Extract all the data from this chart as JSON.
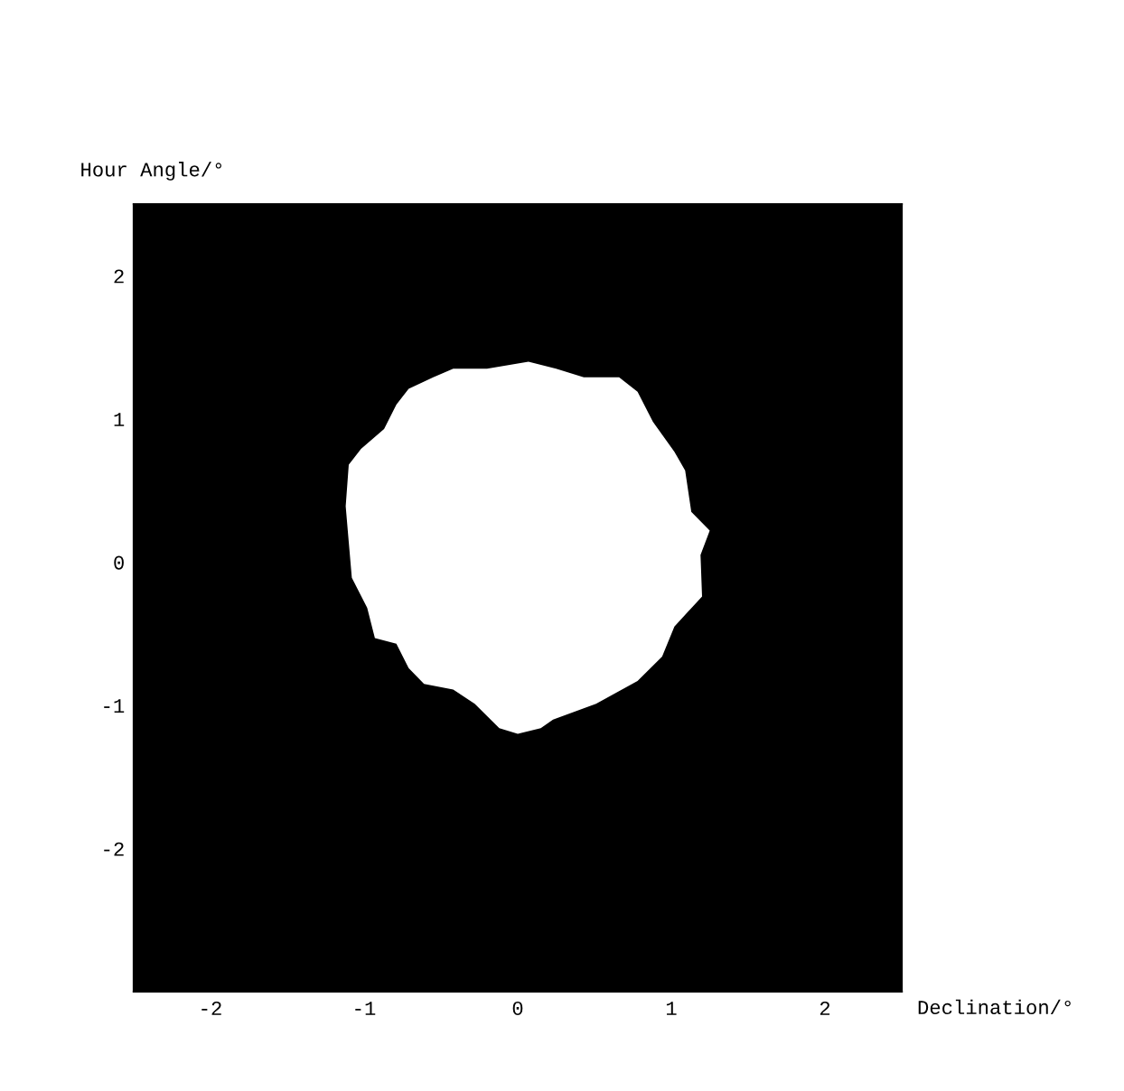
{
  "chart_data": {
    "type": "area",
    "xlabel": "Declination/°",
    "ylabel": "Hour Angle/°",
    "xlim": [
      -2.5,
      2.5
    ],
    "ylim": [
      -3.0,
      2.5
    ],
    "xticks": [
      -2,
      -1,
      0,
      1,
      2
    ],
    "yticks": [
      -2,
      -1,
      0,
      1,
      2
    ],
    "grid": false,
    "bands": [
      {
        "axis": "x",
        "from": -2.5,
        "to": 2.5,
        "color": "#000000"
      }
    ],
    "series": [
      {
        "color": "#ffffff",
        "x": [
          -0.42,
          -0.2,
          0.07,
          0.25,
          0.43,
          0.66,
          0.78,
          0.88,
          1.02,
          1.09,
          1.13,
          1.25,
          1.19,
          1.2,
          1.02,
          0.94,
          0.78,
          0.51,
          0.23,
          0.15,
          0.0,
          -0.12,
          -0.28,
          -0.42,
          -0.61,
          -0.71,
          -0.79,
          -0.93,
          -0.98,
          -1.08,
          -1.1,
          -1.12,
          -1.1,
          -1.02,
          -0.87,
          -0.79,
          -0.71,
          -0.55
        ],
        "values": [
          1.35,
          1.35,
          1.4,
          1.35,
          1.29,
          1.29,
          1.19,
          0.98,
          0.77,
          0.64,
          0.35,
          0.22,
          0.05,
          -0.24,
          -0.45,
          -0.66,
          -0.83,
          -0.99,
          -1.1,
          -1.16,
          -1.2,
          -1.16,
          -0.99,
          -0.89,
          -0.85,
          -0.74,
          -0.57,
          -0.53,
          -0.32,
          -0.11,
          0.14,
          0.39,
          0.68,
          0.79,
          0.93,
          1.1,
          1.21,
          1.29
        ]
      }
    ]
  }
}
